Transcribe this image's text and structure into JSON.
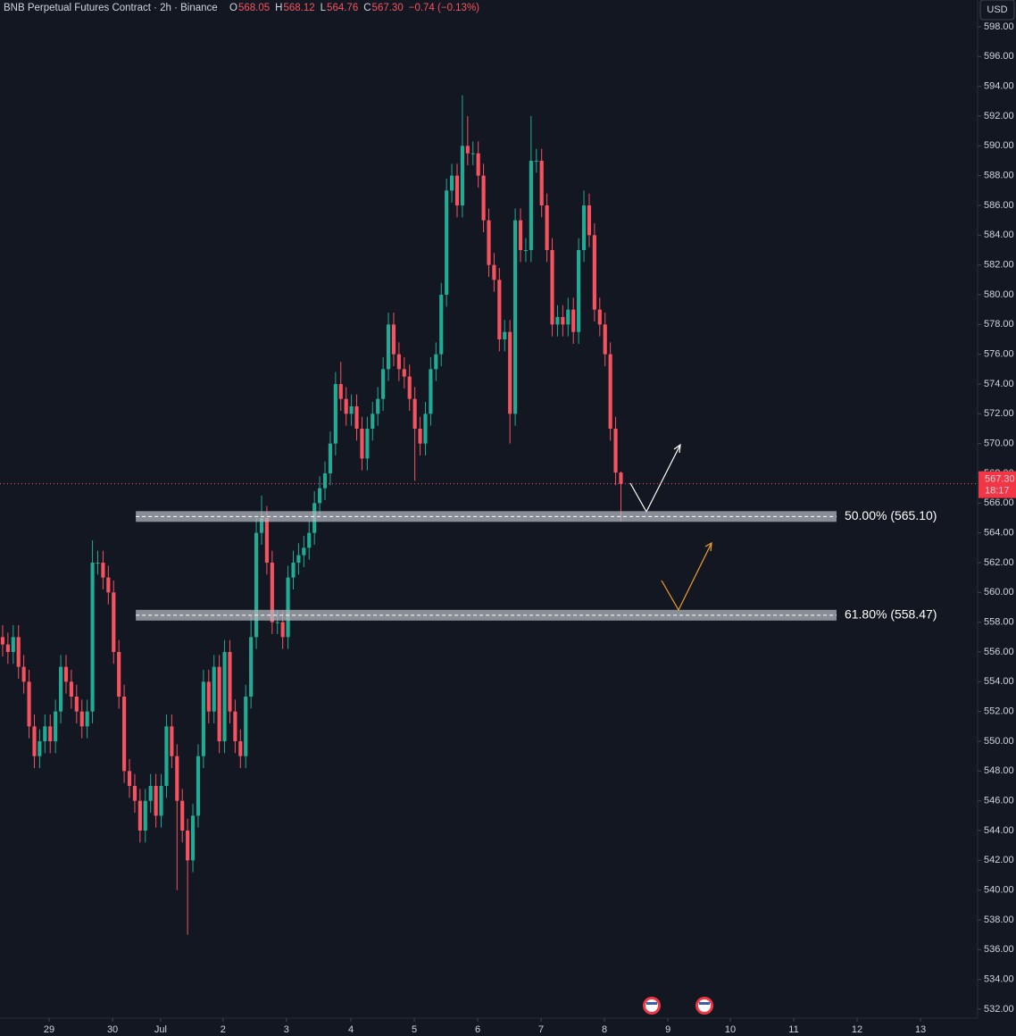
{
  "chart_data": {
    "type": "candlestick",
    "title": "BNB Perpetual Futures Contract · 2h · Binance",
    "ohlc_legend": [
      {
        "label": "O",
        "value": "568.05"
      },
      {
        "label": "H",
        "value": "568.12"
      },
      {
        "label": "L",
        "value": "564.76"
      },
      {
        "label": "C",
        "value": "567.30"
      }
    ],
    "change": "−0.74 (−0.13%)",
    "currency": "USD",
    "last_price_label": "567.30",
    "countdown": "18:17",
    "last_price": 567.3,
    "up_color": "#22ab94",
    "down_color": "#f7525f",
    "open": [
      557,
      556.5,
      556,
      557,
      555,
      554,
      551,
      549,
      550,
      551,
      550,
      552,
      555,
      554,
      553,
      552,
      551,
      552,
      562,
      562,
      561,
      560,
      556,
      553,
      548,
      547,
      546,
      544,
      546,
      547,
      545,
      547,
      551,
      549,
      546,
      544,
      542,
      545,
      549,
      554,
      552,
      555,
      550,
      556,
      552,
      550,
      549,
      553,
      557,
      564,
      565,
      562,
      558,
      558,
      557,
      561,
      562,
      562.5,
      563,
      564,
      566,
      567,
      568,
      570,
      574,
      573,
      572,
      572.5,
      571,
      569,
      571,
      572,
      573,
      575,
      578,
      576,
      575,
      574.5,
      573,
      571,
      570,
      572,
      575,
      576,
      580,
      587,
      588,
      586,
      590,
      589.5,
      589.5,
      588,
      585,
      582,
      581,
      577,
      577.5,
      572,
      585,
      583,
      583,
      589,
      589,
      586,
      583,
      578,
      578.5,
      578,
      579,
      577.5,
      583,
      586,
      584,
      579,
      578,
      576,
      571,
      568.05
    ],
    "high": [
      557.8,
      557.3,
      557.8,
      557.8,
      555.8,
      554.8,
      551.8,
      550.8,
      551.8,
      551.8,
      552.8,
      555.8,
      555.8,
      554.8,
      553.8,
      552.8,
      552.8,
      563.5,
      562.8,
      562.8,
      561.8,
      560.8,
      556.8,
      553.8,
      548.8,
      547.8,
      546.8,
      546.8,
      547.8,
      547.8,
      547.8,
      551.8,
      551.8,
      549.8,
      546.8,
      544.8,
      545.8,
      549.8,
      554.8,
      554.8,
      555.8,
      555.8,
      556.8,
      556.8,
      552.8,
      550.8,
      553.8,
      558.5,
      565,
      566.5,
      565.8,
      562.8,
      558.8,
      558.8,
      561.8,
      562.8,
      563.3,
      563.8,
      564.8,
      566.8,
      567.8,
      568.8,
      570.8,
      574.8,
      575.5,
      573.8,
      573.3,
      573.3,
      571.8,
      571.8,
      572.8,
      573.8,
      575.8,
      578.8,
      578.8,
      576.8,
      575.8,
      575.3,
      573.8,
      571.8,
      572.8,
      575.8,
      576.8,
      580.8,
      587.8,
      588.8,
      588.8,
      593.4,
      592,
      590.3,
      590.3,
      588.8,
      585.8,
      582.8,
      581.8,
      578.3,
      578.3,
      585.8,
      585.8,
      583.8,
      592,
      589.8,
      589.8,
      586.8,
      583.8,
      579.3,
      579.3,
      579.8,
      579.8,
      583.8,
      587,
      586.8,
      584.8,
      579.8,
      578.8,
      576.8,
      571.8,
      568.12
    ],
    "low": [
      555.7,
      555.2,
      555.2,
      554.2,
      553.2,
      550.2,
      548.2,
      548.2,
      549.2,
      549.2,
      549.2,
      551.2,
      553.2,
      552.2,
      551.2,
      550.2,
      550.2,
      551.2,
      561.2,
      560.2,
      559.2,
      555.2,
      552.2,
      547.2,
      546.2,
      545.2,
      543.2,
      543.2,
      545.2,
      544.2,
      544.2,
      546.2,
      548.2,
      540,
      543.2,
      537,
      541.2,
      544.2,
      548.2,
      551.2,
      551.2,
      549.2,
      549.2,
      551.2,
      549.2,
      548.2,
      548.2,
      552.2,
      556.2,
      563.2,
      561.2,
      557.2,
      557.2,
      556.2,
      556.2,
      560.2,
      561.2,
      561.7,
      562.2,
      563.2,
      565.2,
      566.2,
      567.2,
      569.2,
      572.2,
      571.2,
      571.2,
      570.2,
      568.2,
      568.2,
      570.2,
      571.2,
      572.2,
      574.2,
      575.2,
      574.2,
      573.7,
      572.2,
      567.5,
      569.2,
      569.2,
      571.2,
      574.2,
      575.2,
      579.2,
      586.2,
      585.2,
      585.2,
      588.7,
      588.7,
      587.2,
      584.2,
      581.2,
      580.2,
      576.2,
      576.2,
      570,
      571.2,
      582.2,
      582.2,
      582.2,
      588.2,
      585.2,
      582.2,
      577.2,
      577.2,
      577.2,
      577.2,
      576.7,
      576.7,
      582.2,
      583.2,
      578.2,
      577.2,
      575.2,
      570.2,
      567.2,
      564.76
    ],
    "close": [
      556.5,
      556,
      557,
      555,
      554,
      551,
      549,
      550,
      551,
      550,
      552,
      555,
      554,
      553,
      552,
      551,
      552,
      562,
      562,
      561,
      560,
      556,
      553,
      548,
      547,
      546,
      544,
      546,
      547,
      545,
      547,
      551,
      549,
      546,
      544,
      542,
      545,
      549,
      554,
      552,
      555,
      550,
      556,
      552,
      550,
      549,
      553,
      557,
      564,
      565,
      562,
      558,
      558,
      557,
      561,
      562,
      562.5,
      563,
      564,
      566,
      567,
      568,
      570,
      574,
      573,
      572,
      572.5,
      571,
      569,
      571,
      572,
      573,
      575,
      578,
      576,
      575,
      574.5,
      573,
      571,
      570,
      572,
      575,
      576,
      580,
      587,
      588,
      586,
      590,
      589.5,
      589.5,
      588,
      585,
      582,
      581,
      577,
      577.5,
      572,
      585,
      583,
      583,
      589,
      589,
      586,
      583,
      578,
      578.5,
      578,
      579,
      577.5,
      583,
      586,
      584,
      579,
      578,
      576,
      571,
      568.05,
      567.3
    ],
    "xlim": [
      -0.5,
      184.5
    ],
    "xticks": [
      {
        "value": 8.8,
        "label": "29"
      },
      {
        "value": 20.8,
        "label": "30"
      },
      {
        "value": 29.9,
        "label": "Jul"
      },
      {
        "value": 41.7,
        "label": "2"
      },
      {
        "value": 53.7,
        "label": "3"
      },
      {
        "value": 65.9,
        "label": "4"
      },
      {
        "value": 77.9,
        "label": "5"
      },
      {
        "value": 89.9,
        "label": "6"
      },
      {
        "value": 101.9,
        "label": "7"
      },
      {
        "value": 113.9,
        "label": "8"
      },
      {
        "value": 125.9,
        "label": "9"
      },
      {
        "value": 137.7,
        "label": "10"
      },
      {
        "value": 149.7,
        "label": "11"
      },
      {
        "value": 161.7,
        "label": "12"
      },
      {
        "value": 173.7,
        "label": "13"
      }
    ],
    "ylim": [
      531.4,
      599.8
    ],
    "yticks": [
      {
        "value": 532,
        "label": "532.00"
      },
      {
        "value": 534,
        "label": "534.00"
      },
      {
        "value": 536,
        "label": "536.00"
      },
      {
        "value": 538,
        "label": "538.00"
      },
      {
        "value": 540,
        "label": "540.00"
      },
      {
        "value": 542,
        "label": "542.00"
      },
      {
        "value": 544,
        "label": "544.00"
      },
      {
        "value": 546,
        "label": "546.00"
      },
      {
        "value": 548,
        "label": "548.00"
      },
      {
        "value": 550,
        "label": "550.00"
      },
      {
        "value": 552,
        "label": "552.00"
      },
      {
        "value": 554,
        "label": "554.00"
      },
      {
        "value": 556,
        "label": "556.00"
      },
      {
        "value": 558,
        "label": "558.00"
      },
      {
        "value": 560,
        "label": "560.00"
      },
      {
        "value": 562,
        "label": "562.00"
      },
      {
        "value": 564,
        "label": "564.00"
      },
      {
        "value": 566,
        "label": "566.00"
      },
      {
        "value": 568,
        "label": "568.00"
      },
      {
        "value": 570,
        "label": "570.00"
      },
      {
        "value": 572,
        "label": "572.00"
      },
      {
        "value": 574,
        "label": "574.00"
      },
      {
        "value": 576,
        "label": "576.00"
      },
      {
        "value": 578,
        "label": "578.00"
      },
      {
        "value": 580,
        "label": "580.00"
      },
      {
        "value": 582,
        "label": "582.00"
      },
      {
        "value": 584,
        "label": "584.00"
      },
      {
        "value": 586,
        "label": "586.00"
      },
      {
        "value": 588,
        "label": "588.00"
      },
      {
        "value": 590,
        "label": "590.00"
      },
      {
        "value": 592,
        "label": "592.00"
      },
      {
        "value": 594,
        "label": "594.00"
      },
      {
        "value": 596,
        "label": "596.00"
      },
      {
        "value": 598,
        "label": "598.00"
      }
    ],
    "levels": [
      {
        "value": 565.1,
        "label": "50.00% (565.10)",
        "x_range": [
          25.2,
          157.8
        ]
      },
      {
        "value": 558.47,
        "label": "61.80% (558.47)",
        "x_range": [
          25.2,
          157.8
        ]
      }
    ]
  }
}
